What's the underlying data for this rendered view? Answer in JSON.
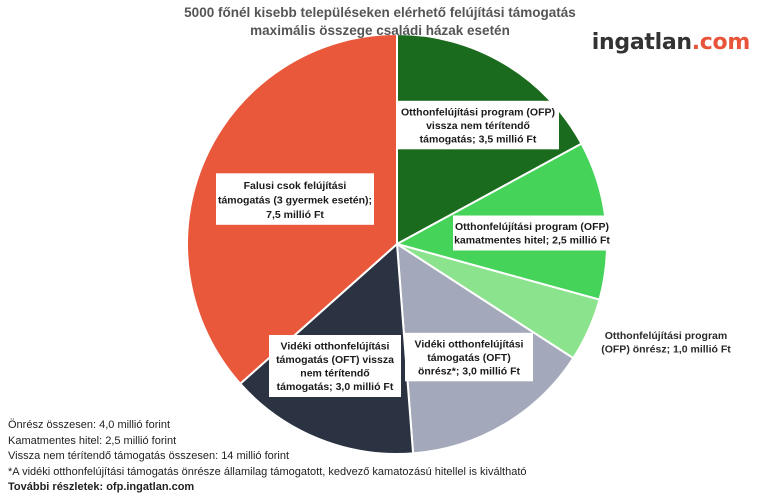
{
  "chart_data": {
    "type": "pie",
    "title": "5000 főnél kisebb településeken elérhető felújítási támogatás maximális összege családi házak esetén",
    "title_lines": [
      "5000 főnél kisebb településeken elérhető felújítási támogatás",
      "maximális összege családi házak esetén"
    ],
    "unit": "millió Ft",
    "slices": [
      {
        "key": "ofp-grant",
        "label_lines": [
          "Otthonfelújítási program (OFP)",
          "vissza nem térítendő",
          "támogatás; 3,5 millió Ft"
        ],
        "value": 3.5,
        "color": "#1b6b1e",
        "label_placement": "inside-boxed"
      },
      {
        "key": "ofp-loan",
        "label_lines": [
          "Otthonfelújítási program (OFP)",
          "kamatmentes hitel; 2,5 millió Ft"
        ],
        "value": 2.5,
        "color": "#45d35a",
        "label_placement": "inside-boxed"
      },
      {
        "key": "ofp-own",
        "label_lines": [
          "Otthonfelújítási program",
          "(OFP) önrész; 1,0 millió Ft"
        ],
        "value": 1.0,
        "color": "#8ce38d",
        "label_placement": "outside-right"
      },
      {
        "key": "oft-own",
        "label_lines": [
          "Vidéki otthonfelújítási",
          "támogatás (OFT)",
          "önrész*; 3,0 millió Ft"
        ],
        "value": 3.0,
        "color": "#a3a9ba",
        "label_placement": "inside-boxed"
      },
      {
        "key": "oft-grant",
        "label_lines": [
          "Vidéki otthonfelújítási",
          "támogatás (OFT) vissza",
          "nem térítendő",
          "támogatás; 3,0 millió Ft"
        ],
        "value": 3.0,
        "color": "#2b3242",
        "label_placement": "inside-boxed"
      },
      {
        "key": "csok",
        "label_lines": [
          "Falusi csok felújítási",
          "támogatás (3 gyermek esetén);",
          "7,5 millió Ft"
        ],
        "value": 7.5,
        "color": "#e9583b",
        "label_placement": "inside-boxed"
      }
    ],
    "start_angle_deg": 0,
    "direction": "clockwise",
    "legend": "none"
  },
  "brand": {
    "part1": "ingatlan",
    "part2": ".com"
  },
  "footer": [
    "Önrész összesen: 4,0 millió forint",
    "Kamatmentes hitel: 2,5 millió forint",
    "Vissza nem térítendő támogatás összesen: 14 millió forint",
    "*A vidéki otthonfelújítási támogatás önrésze államilag támogatott, kedvező kamatozású hitellel is kiváltható",
    "További részletek: ofp.ingatlan.com"
  ]
}
